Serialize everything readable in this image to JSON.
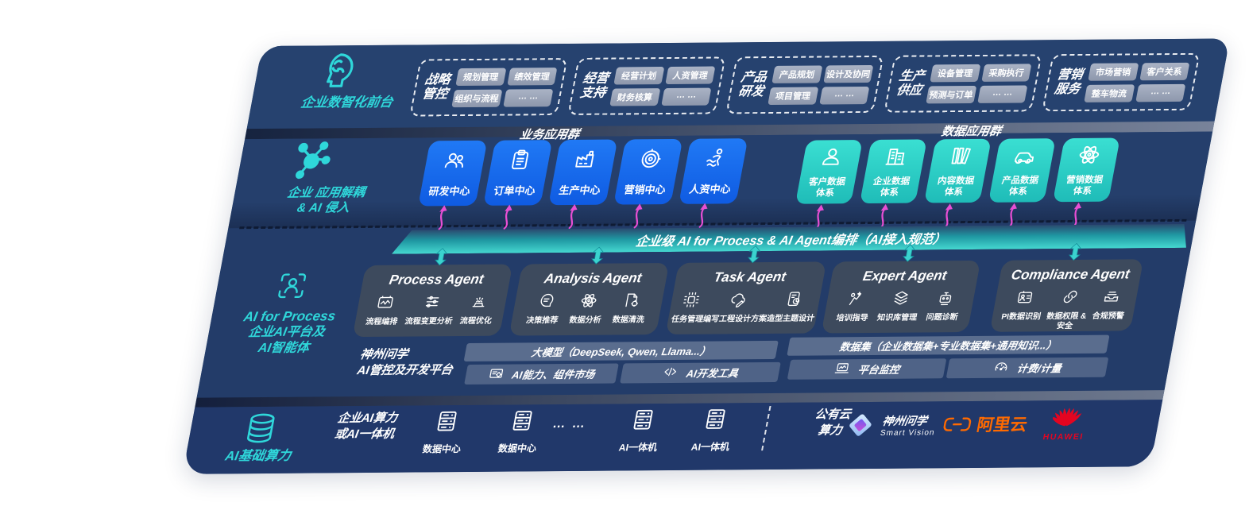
{
  "colors": {
    "panel_navy": "#243e6b",
    "teal_accent": "#2fd7da",
    "blue_box": "#1568e8",
    "teal_box": "#2fcfc6",
    "magenta_arrow": "#e84fd4",
    "bar_teal": "#2fb3b4",
    "aliyun_orange": "#ff6a00",
    "huawei_red": "#e40521"
  },
  "front_layer": {
    "label": "企业数智化前台",
    "icon": "head-brain",
    "groups": [
      {
        "title_line1": "战略",
        "title_line2": "管控",
        "items": [
          "规划管理",
          "绩效管理",
          "组织与流程",
          "… …"
        ]
      },
      {
        "title_line1": "经营",
        "title_line2": "支持",
        "items": [
          "经营计划",
          "人资管理",
          "财务核算",
          "… …"
        ]
      },
      {
        "title_line1": "产品",
        "title_line2": "研发",
        "items": [
          "产品规划",
          "设计及协同",
          "项目管理",
          "… …"
        ]
      },
      {
        "title_line1": "生产",
        "title_line2": "供应",
        "items": [
          "设备管理",
          "采购执行",
          "预测与订单",
          "… …"
        ]
      },
      {
        "title_line1": "营销",
        "title_line2": "服务",
        "items": [
          "市场营销",
          "客户关系",
          "整车物流",
          "… …"
        ]
      }
    ]
  },
  "app_layer": {
    "label_line1": "企业 应用解耦",
    "label_line2": "& AI 侵入",
    "icon": "molecule",
    "business_group_title": "业务应用群",
    "business_apps": [
      {
        "label": "研发中心",
        "icon": "people"
      },
      {
        "label": "订单中心",
        "icon": "clipboard"
      },
      {
        "label": "生产中心",
        "icon": "factory"
      },
      {
        "label": "营销中心",
        "icon": "target"
      },
      {
        "label": "人资中心",
        "icon": "person-run"
      }
    ],
    "data_group_title": "数据应用群",
    "data_apps": [
      {
        "line1": "客户数据",
        "line2": "体系",
        "icon": "person"
      },
      {
        "line1": "企业数据",
        "line2": "体系",
        "icon": "building"
      },
      {
        "line1": "内容数据",
        "line2": "体系",
        "icon": "columns"
      },
      {
        "line1": "产品数据",
        "line2": "体系",
        "icon": "car"
      },
      {
        "line1": "营销数据",
        "line2": "体系",
        "icon": "atom"
      }
    ]
  },
  "orchestration_bar": {
    "label": "企业级 AI for Process & AI Agent编排（AI接入规范）"
  },
  "ai_layer": {
    "label_line1": "AI for Process",
    "label_line2": "企业AI平台及",
    "label_line3": "AI智能体",
    "icon": "person-scan",
    "agents": [
      {
        "title": "Process Agent",
        "items": [
          {
            "label": "流程编排",
            "icon": "box-wave"
          },
          {
            "label": "流程变更分析",
            "icon": "sliders"
          },
          {
            "label": "流程优化",
            "icon": "gear-hat"
          }
        ]
      },
      {
        "title": "Analysis Agent",
        "items": [
          {
            "label": "决策推荐",
            "icon": "head-chat"
          },
          {
            "label": "数据分析",
            "icon": "atom"
          },
          {
            "label": "数据清洗",
            "icon": "doc-gear"
          }
        ]
      },
      {
        "title": "Task Agent",
        "items": [
          {
            "label": "任务管理",
            "icon": "grid-nodes"
          },
          {
            "label": "编写工程设计方案",
            "icon": "cloud-pen"
          },
          {
            "label": "造型主题设计",
            "icon": "tablet-check"
          }
        ]
      },
      {
        "title": "Expert Agent",
        "items": [
          {
            "label": "培训指导",
            "icon": "person-board"
          },
          {
            "label": "知识库管理",
            "icon": "layers"
          },
          {
            "label": "问题诊断",
            "icon": "robot-tool"
          }
        ]
      },
      {
        "title": "Compliance Agent",
        "items": [
          {
            "label": "PI数据识别",
            "icon": "id-card"
          },
          {
            "label": "数据权限 &\n安全",
            "icon": "link"
          },
          {
            "label": "合规预警",
            "icon": "mail-tray"
          }
        ]
      }
    ]
  },
  "platform": {
    "label_line1": "神州问学",
    "label_line2": "AI管控及开发平台",
    "model_bar": "大模型（DeepSeek, Qwen, Llama...）",
    "cells_left": [
      {
        "label": "AI能力、组件市场",
        "icon": "chip-gear"
      },
      {
        "label": "AI开发工具",
        "icon": "code-pen"
      }
    ],
    "dataset_bar": "数据集（企业数据集+专业数据集+通用知识...）",
    "cells_right": [
      {
        "label": "平台监控",
        "icon": "monitor"
      },
      {
        "label": "计费/计量",
        "icon": "gauge"
      }
    ]
  },
  "compute_layer": {
    "label": "AI基础算力",
    "icon": "database",
    "items": [
      {
        "type": "text",
        "line1": "企业AI算力",
        "line2": "或AI一体机"
      },
      {
        "type": "server",
        "label": "数据中心"
      },
      {
        "type": "server",
        "label": "数据中心"
      },
      {
        "type": "dots",
        "label": "… …"
      },
      {
        "type": "server",
        "label": "AI一体机"
      },
      {
        "type": "server",
        "label": "AI一体机"
      },
      {
        "type": "divider"
      },
      {
        "type": "text",
        "line1": "公有云",
        "line2": "算力"
      },
      {
        "type": "logo_smartvision",
        "line1": "神州问学",
        "line2": "Smart Vision"
      },
      {
        "type": "logo_aliyun",
        "label": "阿里云"
      },
      {
        "type": "logo_huawei",
        "label": "HUAWEI"
      }
    ]
  }
}
